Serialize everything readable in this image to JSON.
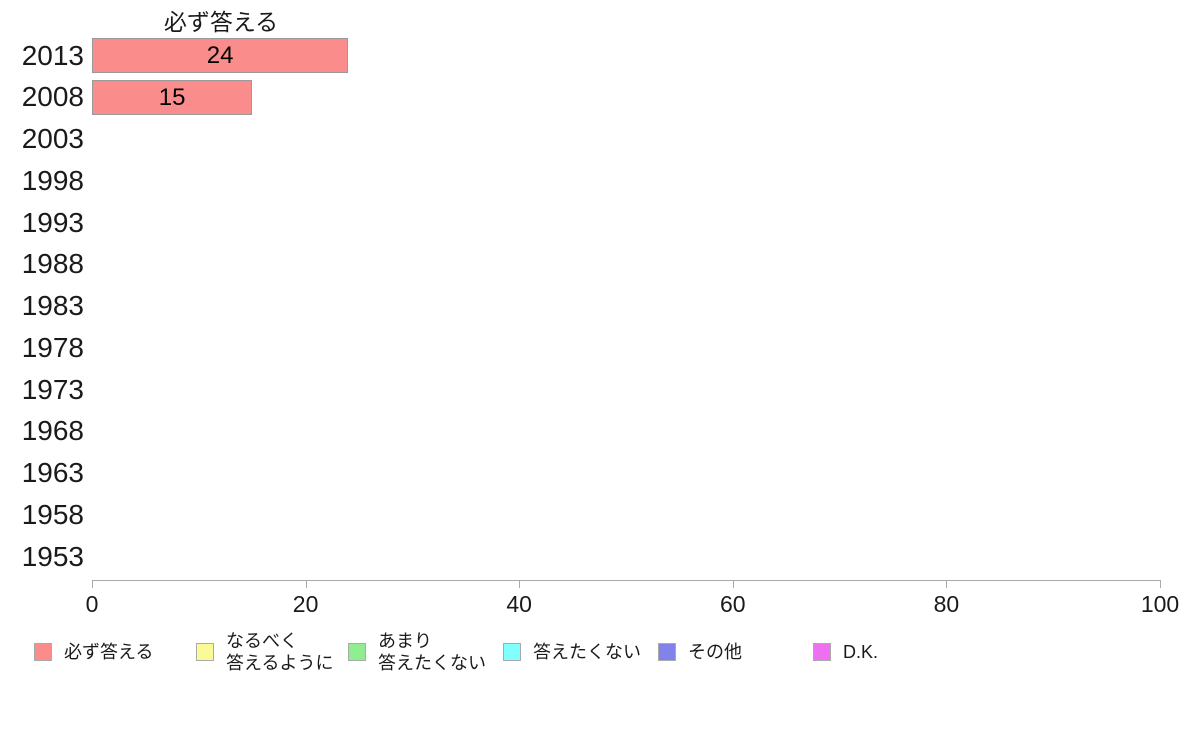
{
  "chart_data": {
    "type": "bar",
    "orientation": "horizontal",
    "title": "必ず答える",
    "categories": [
      "2013",
      "2008",
      "2003",
      "1998",
      "1993",
      "1988",
      "1983",
      "1978",
      "1973",
      "1968",
      "1963",
      "1958",
      "1953"
    ],
    "values": [
      24,
      15,
      null,
      null,
      null,
      null,
      null,
      null,
      null,
      null,
      null,
      null,
      null
    ],
    "xlim": [
      0,
      100
    ],
    "x_ticks": [
      0,
      20,
      40,
      60,
      80,
      100
    ],
    "grid": false,
    "bar_color": "#FA8C8C",
    "bar_border_color": "#999999",
    "axis_color": "#AAAAAA",
    "legend_position": "bottom",
    "legend": [
      {
        "label": "必ず答える",
        "lines": [
          "必ず答える"
        ],
        "color": "#FA8C8C"
      },
      {
        "label": "なるべく答えるように",
        "lines": [
          "なるべく",
          "答えるように"
        ],
        "color": "#FAFA96"
      },
      {
        "label": "あまり答えたくない",
        "lines": [
          "あまり",
          "答えたくない"
        ],
        "color": "#90EE90"
      },
      {
        "label": "答えたくない",
        "lines": [
          "答えたくない"
        ],
        "color": "#80FFFF"
      },
      {
        "label": "その他",
        "lines": [
          "その他"
        ],
        "color": "#8282EA"
      },
      {
        "label": "D.K.",
        "lines": [
          "D.K."
        ],
        "color": "#F06EF0"
      }
    ]
  }
}
